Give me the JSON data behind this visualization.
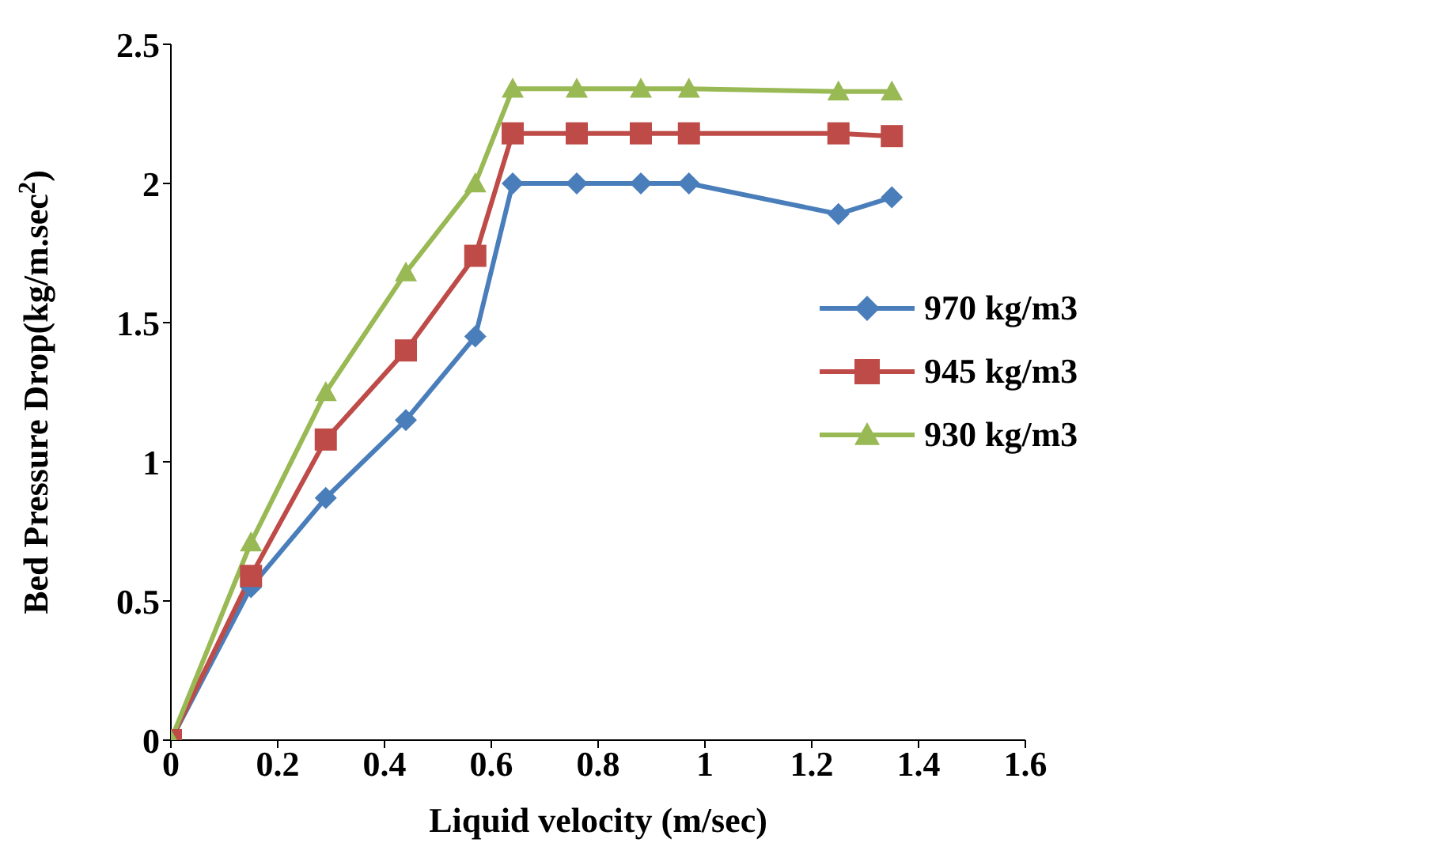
{
  "chart_data": {
    "type": "line",
    "xlabel": "Liquid velocity (m/sec)",
    "ylabel": "Bed Pressure Drop(kg/m.sec$^{2}$)",
    "x": [
      0,
      0.15,
      0.29,
      0.44,
      0.57,
      0.64,
      0.76,
      0.88,
      0.97,
      1.25,
      1.35
    ],
    "series": [
      {
        "name": "970 kg/m3",
        "color": "#4a7ebb",
        "marker": "diamond",
        "values": [
          0,
          0.55,
          0.87,
          1.15,
          1.45,
          2.0,
          2.0,
          2.0,
          2.0,
          1.89,
          1.95
        ]
      },
      {
        "name": "945 kg/m3",
        "color": "#be4b48",
        "marker": "square",
        "values": [
          0,
          0.59,
          1.08,
          1.4,
          1.74,
          2.18,
          2.18,
          2.18,
          2.18,
          2.18,
          2.17
        ]
      },
      {
        "name": "930 kg/m3",
        "color": "#98b954",
        "marker": "triangle",
        "values": [
          0,
          0.71,
          1.25,
          1.68,
          2.0,
          2.34,
          2.34,
          2.34,
          2.34,
          2.33,
          2.33
        ]
      }
    ],
    "xlim": [
      0,
      1.6
    ],
    "xticks": [
      0,
      0.2,
      0.4,
      0.6,
      0.8,
      1,
      1.2,
      1.4,
      1.6
    ],
    "ylim": [
      0,
      2.5
    ],
    "yticks": [
      0,
      0.5,
      1,
      1.5,
      2,
      2.5
    ],
    "grid": false,
    "legend": "right",
    "line_style": "solid"
  }
}
